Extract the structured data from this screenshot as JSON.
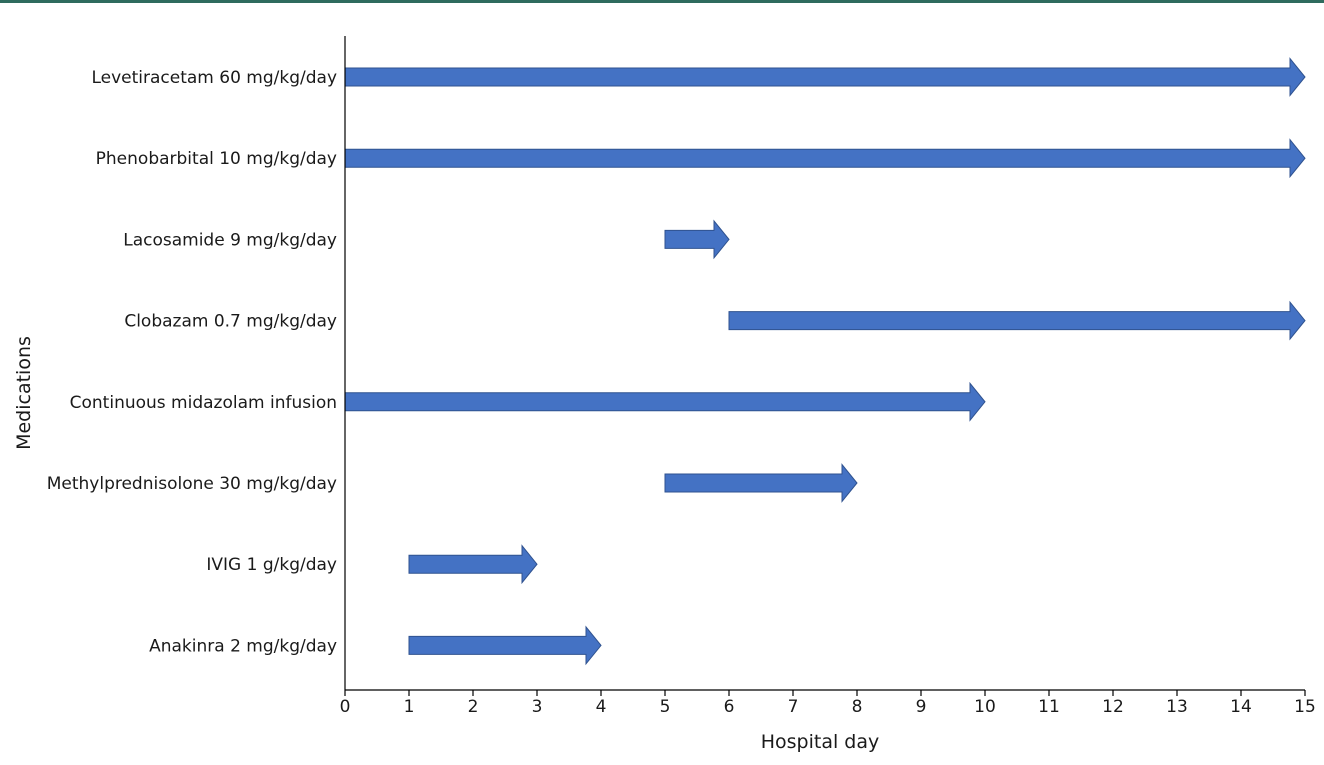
{
  "chart_data": {
    "type": "gantt",
    "xlabel": "Hospital day",
    "ylabel": "Medications",
    "xlim": [
      0,
      15
    ],
    "xticks": [
      0,
      1,
      2,
      3,
      4,
      5,
      6,
      7,
      8,
      9,
      10,
      11,
      12,
      13,
      14,
      15
    ],
    "grid": false,
    "bar_color": "#4472c4",
    "bar_edge_color": "#2f528f",
    "rule_color": "#2f6b5e",
    "series": [
      {
        "label": "Levetiracetam 60 mg/kg/day",
        "start": 0,
        "end": 15
      },
      {
        "label": "Phenobarbital 10 mg/kg/day",
        "start": 0,
        "end": 15
      },
      {
        "label": "Lacosamide 9 mg/kg/day",
        "start": 5,
        "end": 6
      },
      {
        "label": "Clobazam 0.7 mg/kg/day",
        "start": 6,
        "end": 15
      },
      {
        "label": "Continuous midazolam infusion",
        "start": 0,
        "end": 10
      },
      {
        "label": "Methylprednisolone 30 mg/kg/day",
        "start": 5,
        "end": 8
      },
      {
        "label": "IVIG 1 g/kg/day",
        "start": 1,
        "end": 3
      },
      {
        "label": "Anakinra 2 mg/kg/day",
        "start": 1,
        "end": 4
      }
    ]
  }
}
